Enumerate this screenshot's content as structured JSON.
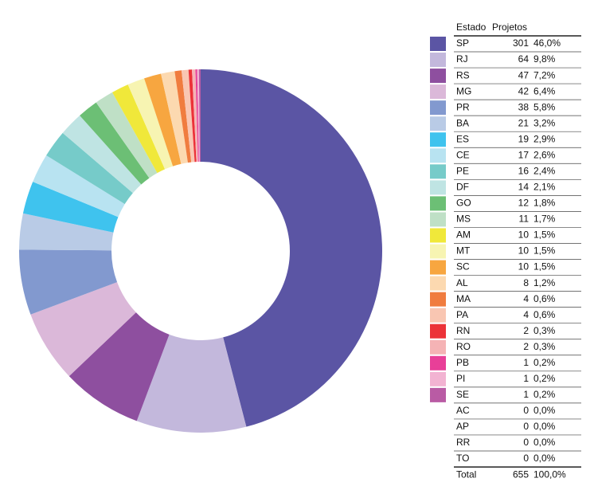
{
  "chart_data": {
    "type": "donut",
    "header": {
      "state": "Estado",
      "count": "Projetos"
    },
    "categories": [
      "SP",
      "RJ",
      "RS",
      "MG",
      "PR",
      "BA",
      "ES",
      "CE",
      "PE",
      "DF",
      "GO",
      "MS",
      "AM",
      "MT",
      "SC",
      "AL",
      "MA",
      "PA",
      "RN",
      "RO",
      "PB",
      "PI",
      "SE",
      "AC",
      "AP",
      "RR",
      "TO"
    ],
    "values": [
      301,
      64,
      47,
      42,
      38,
      21,
      19,
      17,
      16,
      14,
      12,
      11,
      10,
      10,
      10,
      8,
      4,
      4,
      2,
      2,
      1,
      1,
      1,
      0,
      0,
      0,
      0
    ],
    "shares": [
      {
        "value": 46.0,
        "label": "46,0%"
      },
      {
        "value": 9.8,
        "label": "9,8%"
      },
      {
        "value": 7.2,
        "label": "7,2%"
      },
      {
        "value": 6.4,
        "label": "6,4%"
      },
      {
        "value": 5.8,
        "label": "5,8%"
      },
      {
        "value": 3.2,
        "label": "3,2%"
      },
      {
        "value": 2.9,
        "label": "2,9%"
      },
      {
        "value": 2.6,
        "label": "2,6%"
      },
      {
        "value": 2.4,
        "label": "2,4%"
      },
      {
        "value": 2.1,
        "label": "2,1%"
      },
      {
        "value": 1.8,
        "label": "1,8%"
      },
      {
        "value": 1.7,
        "label": "1,7%"
      },
      {
        "value": 1.5,
        "label": "1,5%"
      },
      {
        "value": 1.5,
        "label": "1,5%"
      },
      {
        "value": 1.5,
        "label": "1,5%"
      },
      {
        "value": 1.2,
        "label": "1,2%"
      },
      {
        "value": 0.6,
        "label": "0,6%"
      },
      {
        "value": 0.6,
        "label": "0,6%"
      },
      {
        "value": 0.3,
        "label": "0,3%"
      },
      {
        "value": 0.3,
        "label": "0,3%"
      },
      {
        "value": 0.2,
        "label": "0,2%"
      },
      {
        "value": 0.2,
        "label": "0,2%"
      },
      {
        "value": 0.2,
        "label": "0,2%"
      },
      {
        "value": 0.0,
        "label": "0,0%"
      },
      {
        "value": 0.0,
        "label": "0,0%"
      },
      {
        "value": 0.0,
        "label": "0,0%"
      },
      {
        "value": 0.0,
        "label": "0,0%"
      }
    ],
    "colors": [
      "#5b55a4",
      "#c3b8dc",
      "#8e4f9f",
      "#dbb8d9",
      "#8299cf",
      "#b9cbe6",
      "#3fc3ee",
      "#b8e3f1",
      "#76cbc9",
      "#bfe4e3",
      "#6cbf75",
      "#bfe0c6",
      "#f0e83a",
      "#f7f4b2",
      "#f7a640",
      "#fcd9b0",
      "#f07c3f",
      "#f9c6b2",
      "#ec3238",
      "#f5b3b5",
      "#e83f98",
      "#f2b3d2",
      "#b95ba4",
      null,
      null,
      null,
      null
    ],
    "total": {
      "label": "Total",
      "count": 655,
      "share": {
        "value": 100.0,
        "label": "100,0%"
      }
    }
  }
}
